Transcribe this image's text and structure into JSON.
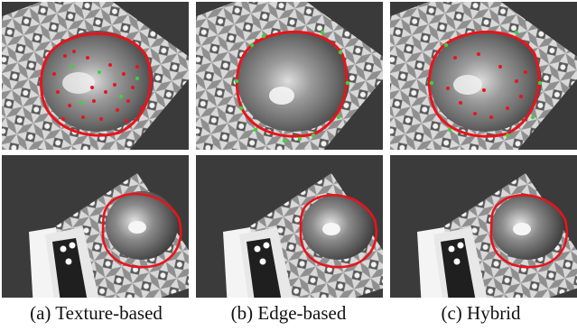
{
  "captions": {
    "a": "(a) Texture-based",
    "b": "(b) Edge-based",
    "c": "(c) Hybrid"
  },
  "colors": {
    "contour": "#e8141c",
    "texture_points": "#e8141c",
    "edge_points": "#3ed13a",
    "background_dark": "#3a3a3a"
  }
}
